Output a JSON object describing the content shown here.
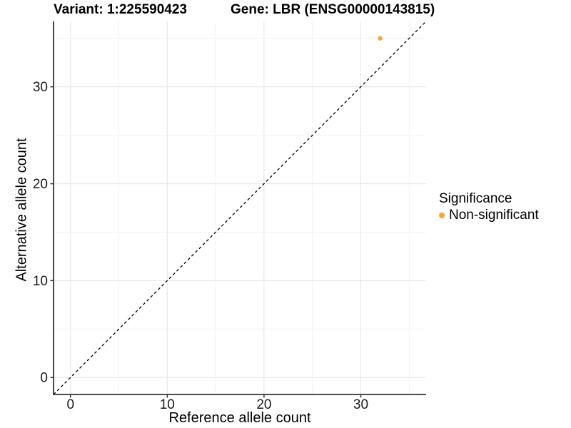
{
  "header": {
    "title_left": "Variant: 1:225590423",
    "title_right": "Gene: LBR (ENSG00000143815)"
  },
  "chart_data": {
    "type": "scatter",
    "title_left": "Variant: 1:225590423",
    "title_right": "Gene: LBR (ENSG00000143815)",
    "xlabel": "Reference allele count",
    "ylabel": "Alternative allele count",
    "xlim": [
      -1.75,
      36.75
    ],
    "ylim": [
      -1.75,
      36.75
    ],
    "x_major_ticks": [
      0,
      10,
      20,
      30
    ],
    "y_major_ticks": [
      0,
      10,
      20,
      30
    ],
    "x_minor_ticks": [
      5,
      15,
      25,
      35
    ],
    "y_minor_ticks": [
      5,
      15,
      25,
      35
    ],
    "grid": true,
    "identity_line": {
      "style": "dashed",
      "slope": 1,
      "intercept": 0,
      "color": "#000000"
    },
    "series": [
      {
        "name": "Non-significant",
        "color": "#F9A23C",
        "points": [
          {
            "x": 32,
            "y": 35
          }
        ]
      }
    ],
    "legend": {
      "title": "Significance",
      "position": "right",
      "items": [
        {
          "label": "Non-significant",
          "color": "#F9A23C"
        }
      ]
    },
    "style": {
      "background": "#FFFFFF",
      "grid_major_color": "#E6E6E6",
      "grid_minor_color": "#F2F2F2",
      "axis_line_color": "#333333",
      "tick_color": "#333333",
      "tick_label_color": "#1A1A1A",
      "point_radius": 3.2
    }
  }
}
